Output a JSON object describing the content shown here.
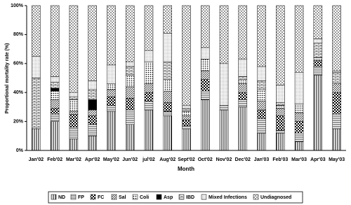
{
  "chart_data": {
    "type": "stacked_bar",
    "x_label": "Month",
    "y_label": "Proportional mortality rate (%)",
    "categories": [
      "Jan'02",
      "Feb'02",
      "Mar'02",
      "Apr'02",
      "May'02",
      "Jun'02",
      "jul'02",
      "Aug'02",
      "Sept'02",
      "Oct'02",
      "Nov'02",
      "Dec'02",
      "Jan'03",
      "Feb'03",
      "Mar'03",
      "Apr'03",
      "May'03"
    ],
    "ylim": [
      0,
      100
    ],
    "yticks": [
      {
        "value": 0,
        "label": "0%"
      },
      {
        "value": 20,
        "label": "20%"
      },
      {
        "value": 40,
        "label": "40%"
      },
      {
        "value": 60,
        "label": "60%"
      },
      {
        "value": 80,
        "label": "80%"
      },
      {
        "value": 100,
        "label": "100%"
      }
    ],
    "legend": "bottom",
    "series": [
      {
        "name": "ND",
        "color": "#000000",
        "pattern": "vertical",
        "values": [
          15,
          20,
          8,
          10,
          27,
          18,
          28,
          24,
          15,
          35,
          28,
          30,
          12,
          12,
          6,
          52,
          15
        ]
      },
      {
        "name": "FP",
        "color": "#000000",
        "pattern": "horizontal",
        "values": [
          0,
          5,
          8,
          8,
          4,
          10,
          6,
          3,
          2,
          6,
          3,
          5,
          10,
          2,
          6,
          6,
          10
        ]
      },
      {
        "name": "FC",
        "color": "#000000",
        "pattern": "checker",
        "values": [
          0,
          4,
          9,
          6,
          6,
          8,
          6,
          6,
          4,
          8,
          0,
          5,
          6,
          10,
          8,
          4,
          15
        ]
      },
      {
        "name": "Sal",
        "color": "#000000",
        "pattern": "diagonal",
        "values": [
          0,
          6,
          2,
          4,
          5,
          8,
          6,
          8,
          3,
          6,
          0,
          6,
          6,
          5,
          6,
          0,
          6
        ]
      },
      {
        "name": "Coli",
        "color": "#000000",
        "pattern": "dots",
        "values": [
          0,
          6,
          8,
          0,
          4,
          8,
          15,
          8,
          3,
          8,
          0,
          3,
          8,
          2,
          6,
          2,
          0
        ]
      },
      {
        "name": "Asp",
        "color": "#000000",
        "pattern": "solid",
        "values": [
          0,
          2,
          0,
          7,
          0,
          0,
          0,
          0,
          0,
          0,
          0,
          0,
          0,
          0,
          0,
          0,
          0
        ]
      },
      {
        "name": "IBD",
        "color": "#000000",
        "pattern": "brick",
        "values": [
          35,
          4,
          2,
          7,
          0,
          6,
          0,
          12,
          2,
          0,
          0,
          2,
          6,
          2,
          0,
          10,
          8
        ]
      },
      {
        "name": "Mixed Infections",
        "color": "#000000",
        "pattern": "finedots",
        "values": [
          15,
          4,
          3,
          6,
          13,
          3,
          8,
          20,
          2,
          8,
          29,
          12,
          10,
          12,
          22,
          3,
          1
        ]
      },
      {
        "name": "Undiagnosed",
        "color": "#000000",
        "pattern": "cross",
        "values": [
          35,
          49,
          60,
          52,
          41,
          39,
          31,
          19,
          69,
          29,
          40,
          37,
          42,
          55,
          46,
          23,
          45
        ]
      }
    ]
  }
}
